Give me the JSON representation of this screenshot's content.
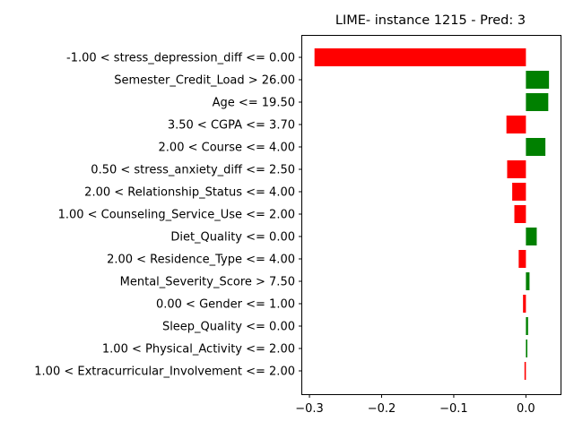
{
  "chart_data": {
    "type": "bar",
    "orientation": "horizontal",
    "title": "LIME- instance 1215 - Pred: 3",
    "xlabel": "",
    "ylabel": "",
    "xlim": [
      -0.31,
      0.048
    ],
    "xticks": [
      -0.3,
      -0.2,
      -0.1,
      0.0
    ],
    "xtick_labels": [
      "−0.3",
      "−0.2",
      "−0.1",
      "0.0"
    ],
    "grid": false,
    "legend": "none",
    "positive_color": "#008000",
    "negative_color": "#ff0000",
    "categories": [
      "-1.00 < stress_depression_diff <= 0.00",
      "Semester_Credit_Load > 26.00",
      "Age <= 19.50",
      "3.50 < CGPA <= 3.70",
      "2.00 < Course <= 4.00",
      "0.50 < stress_anxiety_diff <= 2.50",
      "2.00 < Relationship_Status <= 4.00",
      "1.00 < Counseling_Service_Use <= 2.00",
      "Diet_Quality <= 0.00",
      "2.00 < Residence_Type <= 4.00",
      "Mental_Severity_Score > 7.50",
      "0.00 < Gender <= 1.00",
      "Sleep_Quality <= 0.00",
      "1.00 < Physical_Activity <= 2.00",
      "1.00 < Extracurricular_Involvement <= 2.00"
    ],
    "values": [
      -0.293,
      0.032,
      0.031,
      -0.027,
      0.027,
      -0.026,
      -0.019,
      -0.016,
      0.015,
      -0.01,
      0.005,
      -0.004,
      0.003,
      0.002,
      -0.002
    ]
  }
}
